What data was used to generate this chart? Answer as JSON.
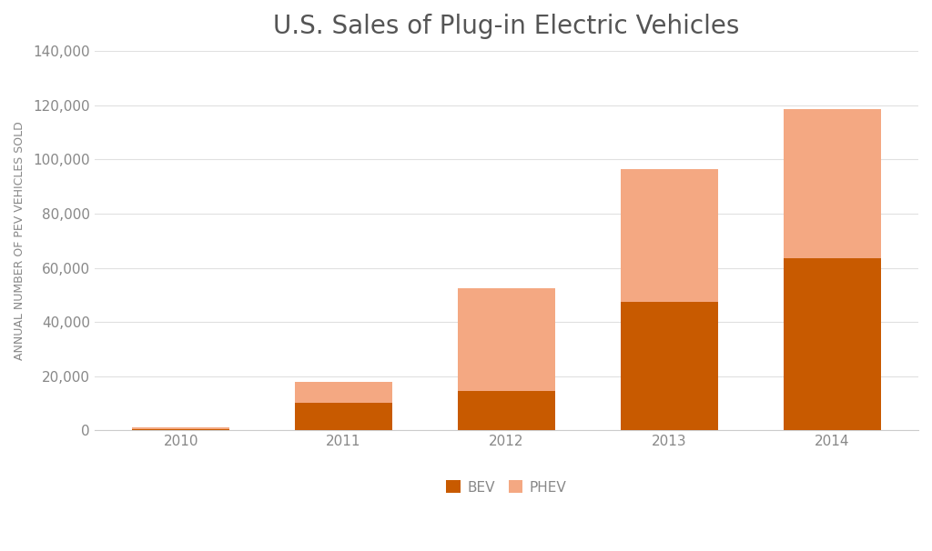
{
  "title": "U.S. Sales of Plug-in Electric Vehicles",
  "ylabel": "ANNUAL NUMBER OF PEV VEHICLES SOLD",
  "categories": [
    "2010",
    "2011",
    "2012",
    "2013",
    "2014"
  ],
  "bev_values": [
    326,
    10200,
    14500,
    47500,
    63500
  ],
  "phev_values": [
    600,
    7600,
    38000,
    49000,
    55000
  ],
  "bev_color": "#C85A00",
  "phev_color": "#F4A882",
  "ylim": [
    0,
    140000
  ],
  "yticks": [
    0,
    20000,
    40000,
    60000,
    80000,
    100000,
    120000,
    140000
  ],
  "background_color": "#ffffff",
  "title_fontsize": 20,
  "ylabel_fontsize": 9,
  "tick_fontsize": 11,
  "legend_fontsize": 11,
  "bar_width": 0.6,
  "grid_color": "#e0e0e0",
  "title_color": "#555555",
  "tick_color": "#888888"
}
